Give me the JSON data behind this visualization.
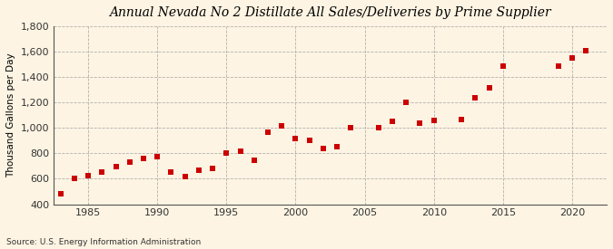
{
  "title": "Annual Nevada No 2 Distillate All Sales/Deliveries by Prime Supplier",
  "ylabel": "Thousand Gallons per Day",
  "source": "Source: U.S. Energy Information Administration",
  "background_color": "#FDF4E3",
  "years": [
    1983,
    1984,
    1985,
    1986,
    1987,
    1988,
    1989,
    1990,
    1991,
    1992,
    1993,
    1994,
    1995,
    1996,
    1997,
    1998,
    1999,
    2000,
    2001,
    2002,
    2003,
    2004,
    2006,
    2007,
    2008,
    2009,
    2010,
    2012,
    2013,
    2014,
    2015,
    2019,
    2020,
    2021
  ],
  "values": [
    480,
    600,
    625,
    650,
    695,
    730,
    760,
    775,
    655,
    615,
    670,
    680,
    805,
    815,
    745,
    970,
    1020,
    915,
    900,
    840,
    855,
    1005,
    1000,
    1055,
    1205,
    1035,
    1060,
    1065,
    1240,
    1315,
    1490,
    1490,
    1550,
    1610
  ],
  "marker_color": "#CC0000",
  "ylim": [
    400,
    1800
  ],
  "yticks": [
    400,
    600,
    800,
    1000,
    1200,
    1400,
    1600,
    1800
  ],
  "xticks": [
    1985,
    1990,
    1995,
    2000,
    2005,
    2010,
    2015,
    2020
  ],
  "xlim": [
    1982.5,
    2022.5
  ]
}
